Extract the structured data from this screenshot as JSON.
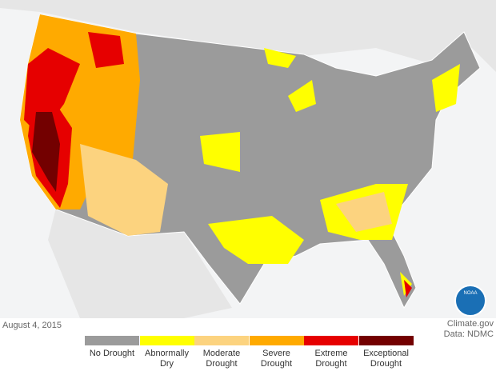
{
  "date": "August 4, 2015",
  "credit": "Climate.gov",
  "source": "Data: NDMC",
  "logo": "NOAA",
  "legend": [
    {
      "label": "No Drought",
      "color": "#9b9b9b"
    },
    {
      "label": "Abnormally Dry",
      "color": "#ffff00"
    },
    {
      "label": "Moderate Drought",
      "color": "#fcd37f"
    },
    {
      "label": "Severe Drought",
      "color": "#ffaa00"
    },
    {
      "label": "Extreme Drought",
      "color": "#e60000"
    },
    {
      "label": "Exceptional Drought",
      "color": "#730000"
    }
  ]
}
